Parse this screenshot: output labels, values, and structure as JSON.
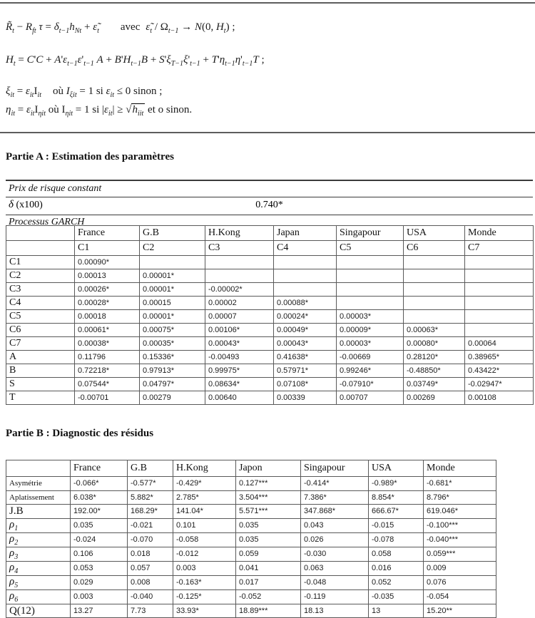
{
  "titles": {
    "partA": "Partie  A : Estimation des paramètres",
    "partB": "Partie B : Diagnostic des résidus"
  },
  "equations": {
    "eq1": "<i>R̃</i><sub>t</sub> − <i>R</i><sub>ft</sub> <i>τ</i> = <i>δ</i><sub>t−1</sub><i>h</i><sub>Nt</sub> + <i>ε̃</i><sub>t</sub><span class=wgap></span>avec<span class=sgap></span><i>ε̃</i><sub>t</sub> / Ω<sub>t−1</sub> → <i>N</i>(0, <i>H</i><sub>t</sub>) ;",
    "eq2": "<i>H</i><sub>t</sub> = <i>C</i>'<i>C</i> + <i>A</i>'<i>ε</i><sub>t−1</sub><i>ε</i>'<sub>t−1</sub> <i>A</i> + <i>B</i>'<i>H</i><sub>t−1</sub><i>B</i> + <i>S</i>'<i>ξ</i><sub>T−1</sub><i>ξ</i>'<sub>t−1</sub> + <i>T</i>'<i>η</i><sub>t−1</sub><i>η</i>'<sub>t−1</sub><i>T</i> ;",
    "eq3": "<i>ξ</i><sub>it</sub> = <i>ε</i><sub>it</sub><span class=up>I</span><sub>it</sub><span class=mgap></span>où <i>I</i><sub>ξit</sub> = 1 si  <i>ε</i><sub>it</sub> ≤ 0 sinon ;",
    "eq4": "<i>η</i><sub>it</sub> = <i>ε</i><sub>it</sub><span class=up>I</span><sub>ηit</sub>  où <span class=up>I</span><sub>ηit</sub> = 1 si  |<i>ε</i><sub>it</sub>| ≥ √<span class=rad><i>h</i><sub>iit</sub></span>  et o sinon."
  },
  "tableA": {
    "risk_label": "Prix de risque constant",
    "delta_label": "<i>δ</i> (x100)",
    "delta_value": "0.740*",
    "process_label": "Processus GARCH",
    "header_rows": [
      [
        "",
        "France",
        "G.B",
        "H.Kong",
        "Japan",
        "Singapour",
        "USA",
        "Monde"
      ],
      [
        "",
        "C1",
        "C2",
        "C3",
        "C4",
        "C5",
        "C6",
        "C7"
      ]
    ],
    "rows": [
      {
        "label": "C1",
        "values": [
          "0.00090*",
          "",
          "",
          "",
          "",
          "",
          ""
        ]
      },
      {
        "label": "C2",
        "values": [
          "0.00013",
          "0.00001*",
          "",
          "",
          "",
          "",
          ""
        ]
      },
      {
        "label": "C3",
        "values": [
          "0.00026*",
          "0.00001*",
          "-0.00002*",
          "",
          "",
          "",
          ""
        ]
      },
      {
        "label": "C4",
        "values": [
          "0.00028*",
          "0.00015",
          "0.00002",
          "0.00088*",
          "",
          "",
          ""
        ]
      },
      {
        "label": "C5",
        "values": [
          "0.00018",
          "0.00001*",
          "0.00007",
          "0.00024*",
          "0.00003*",
          "",
          ""
        ]
      },
      {
        "label": "C6",
        "values": [
          "0.00061*",
          "0.00075*",
          "0.00106*",
          "0.00049*",
          "0.00009*",
          "0.00063*",
          ""
        ]
      },
      {
        "label": "C7",
        "values": [
          "0.00038*",
          "0.00035*",
          "0.00043*",
          "0.00043*",
          "0.00003*",
          "0.00080*",
          "0.00064"
        ]
      },
      {
        "label": "A",
        "values": [
          "0.11796",
          "0.15336*",
          "-0.00493",
          "0.41638*",
          "-0.00669",
          "0.28120*",
          "0.38965*"
        ]
      },
      {
        "label": "B",
        "values": [
          "0.72218*",
          "0.97913*",
          "0.99975*",
          "0.57971*",
          "0.99246*",
          "-0.48850*",
          "0.43422*"
        ]
      },
      {
        "label": "S",
        "values": [
          "0.07544*",
          "0.04797*",
          "0.08634*",
          "0.07108*",
          "-0.07910*",
          "0.03749*",
          "-0.02947*"
        ]
      },
      {
        "label": "T",
        "values": [
          "-0.00701",
          "0.00279",
          "0.00640",
          "0.00339",
          "0.00707",
          "0.00269",
          "0.00108"
        ]
      }
    ]
  },
  "tableB": {
    "header_rows": [
      [
        "",
        "France",
        "G.B",
        "H.Kong",
        "Japon",
        "Singapour",
        "USA",
        "Monde"
      ]
    ],
    "rows": [
      {
        "label": "Asymétrie",
        "label_class": "small",
        "values": [
          "-0.066*",
          "-0.577*",
          "-0.429*",
          "0.127***",
          "-0.414*",
          "-0.989*",
          "-0.681*"
        ]
      },
      {
        "label": "Aplatissement",
        "label_class": "small",
        "values": [
          "6.038*",
          "5.882*",
          "2.785*",
          "3.504***",
          "7.386*",
          "8.854*",
          "8.796*"
        ]
      },
      {
        "label": "J.B",
        "label_class": "big",
        "values": [
          "192.00*",
          "168.29*",
          "141.04*",
          "5.571***",
          "347.868*",
          "666.67*",
          "619.046*"
        ]
      },
      {
        "label": "<i>ρ</i><sub>1</sub>",
        "label_class": "rho",
        "values": [
          "0.035",
          "-0.021",
          "0.101",
          "0.035",
          "0.043",
          "-0.015",
          "-0.100***"
        ]
      },
      {
        "label": "<i>ρ</i><sub>2</sub>",
        "label_class": "rho",
        "values": [
          "-0.024",
          "-0.070",
          "-0.058",
          "0.035",
          "0.026",
          "-0.078",
          "-0.040***"
        ]
      },
      {
        "label": "<i>ρ</i><sub>3</sub>",
        "label_class": "rho",
        "values": [
          "0.106",
          "0.018",
          "-0.012",
          "0.059",
          "-0.030",
          "0.058",
          "0.059***"
        ]
      },
      {
        "label": "<i>ρ</i><sub>4</sub>",
        "label_class": "rho",
        "values": [
          "0.053",
          "0.057",
          "0.003",
          "0.041",
          "0.063",
          "0.016",
          "0.009"
        ]
      },
      {
        "label": "<i>ρ</i><sub>5</sub>",
        "label_class": "rho",
        "values": [
          "0.029",
          "0.008",
          "-0.163*",
          "0.017",
          "-0.048",
          "0.052",
          "0.076"
        ]
      },
      {
        "label": "<i>ρ</i><sub>6</sub>",
        "label_class": "rho",
        "values": [
          "0.003",
          "-0.040",
          "-0.125*",
          "-0.052",
          "-0.119",
          "-0.035",
          "-0.054"
        ]
      },
      {
        "label": "Q(12)",
        "label_class": "big",
        "values": [
          "13.27",
          "7.73",
          "33.93*",
          "18.89***",
          "18.13",
          "13",
          "15.20**"
        ]
      }
    ]
  }
}
